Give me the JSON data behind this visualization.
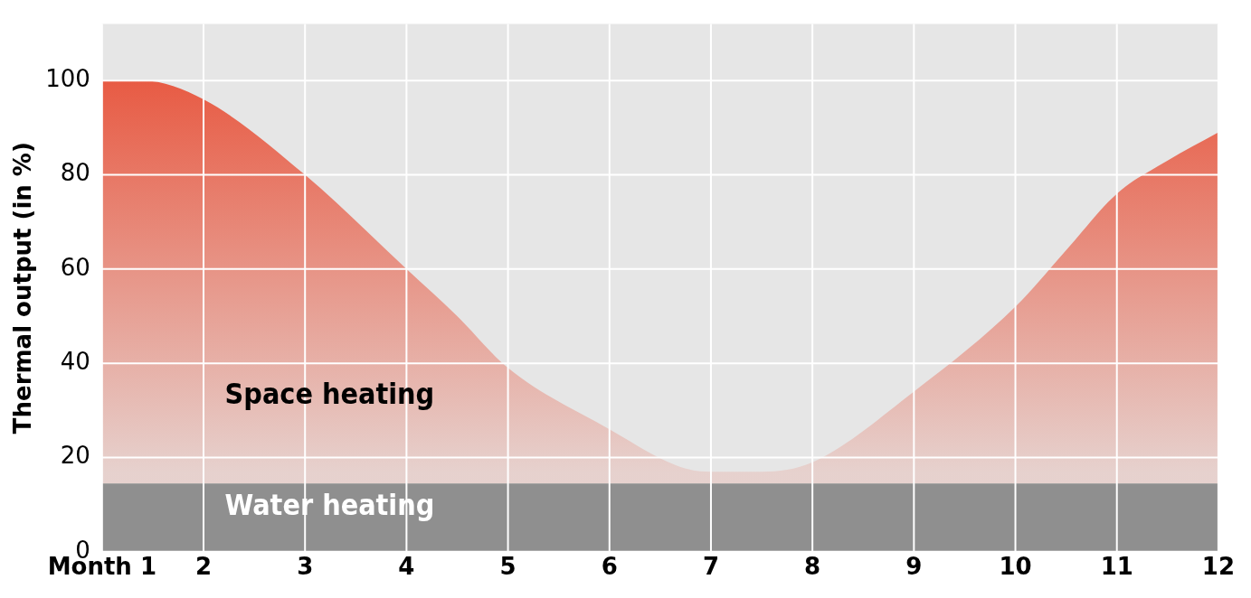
{
  "chart_data": {
    "type": "area",
    "stacked": true,
    "ylabel": "Thermal output (in %)",
    "x": [
      1,
      1.4,
      2,
      3,
      4,
      4.5,
      5,
      6,
      6.7,
      7,
      7.5,
      8,
      9,
      10,
      10.5,
      11,
      11.5,
      12
    ],
    "series": [
      {
        "name": "Water heating",
        "color": "#8f8f8f",
        "values": [
          14.5,
          14.5,
          14.5,
          14.5,
          14.5,
          14.5,
          14.5,
          14.5,
          14.5,
          14.5,
          14.5,
          14.5,
          14.5,
          14.5,
          14.5,
          14.5,
          14.5,
          14.5
        ]
      },
      {
        "name": "Space heating",
        "color": "#e84a30",
        "values": [
          85.5,
          85.5,
          81.5,
          65.5,
          45.5,
          35.5,
          24.5,
          11.5,
          3.5,
          2.5,
          2.5,
          4.5,
          19.5,
          37.5,
          49.5,
          61.5,
          68.5,
          74.5
        ]
      }
    ],
    "xlim": [
      1,
      12
    ],
    "xticks": [
      {
        "value": 1,
        "label": "Month 1"
      },
      2,
      3,
      4,
      5,
      6,
      7,
      8,
      9,
      10,
      11,
      12
    ],
    "ylim": [
      0,
      112
    ],
    "yticks": [
      0,
      20,
      40,
      60,
      80,
      100
    ],
    "grid": true,
    "marker": "none"
  }
}
